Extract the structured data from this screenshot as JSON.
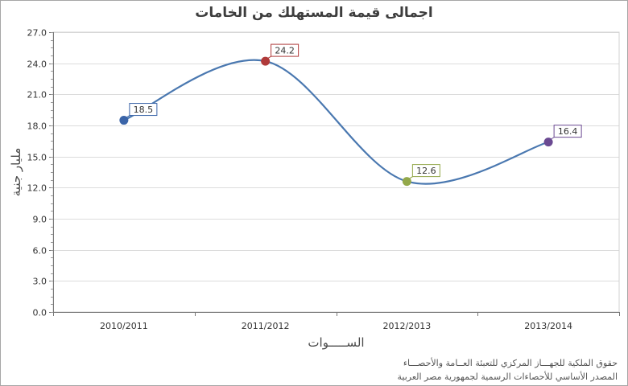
{
  "title": "اجمالى قيمة المستهلك من الخامات",
  "footer": {
    "line1": "حقوق الملكية للجهـــاز المركزي للتعبئة العــامة والأحصـــاء",
    "line2": "المصدر الأساسي للأحصاءات الرسمية لجمهورية مصر العربية"
  },
  "chart_data": {
    "type": "line",
    "title": "اجمالى قيمة المستهلك من الخامات",
    "xlabel": "الســـــوات",
    "ylabel": "مليار جنية",
    "categories": [
      "2010/2011",
      "2011/2012",
      "2012/2013",
      "2013/2014"
    ],
    "values": [
      18.5,
      24.2,
      12.6,
      16.4
    ],
    "labels": [
      "18.5",
      "24.2",
      "12.6",
      "16.4"
    ],
    "point_colors": [
      "#3a64a8",
      "#b03a3a",
      "#93a84a",
      "#6b4a92"
    ],
    "line_color": "#4a78b0",
    "ylim": [
      0,
      27
    ],
    "yticks": [
      "0.0",
      "3.0",
      "6.0",
      "9.0",
      "12.0",
      "15.0",
      "18.0",
      "21.0",
      "24.0",
      "27.0"
    ],
    "grid": true,
    "smooth": true,
    "legend": "none"
  }
}
